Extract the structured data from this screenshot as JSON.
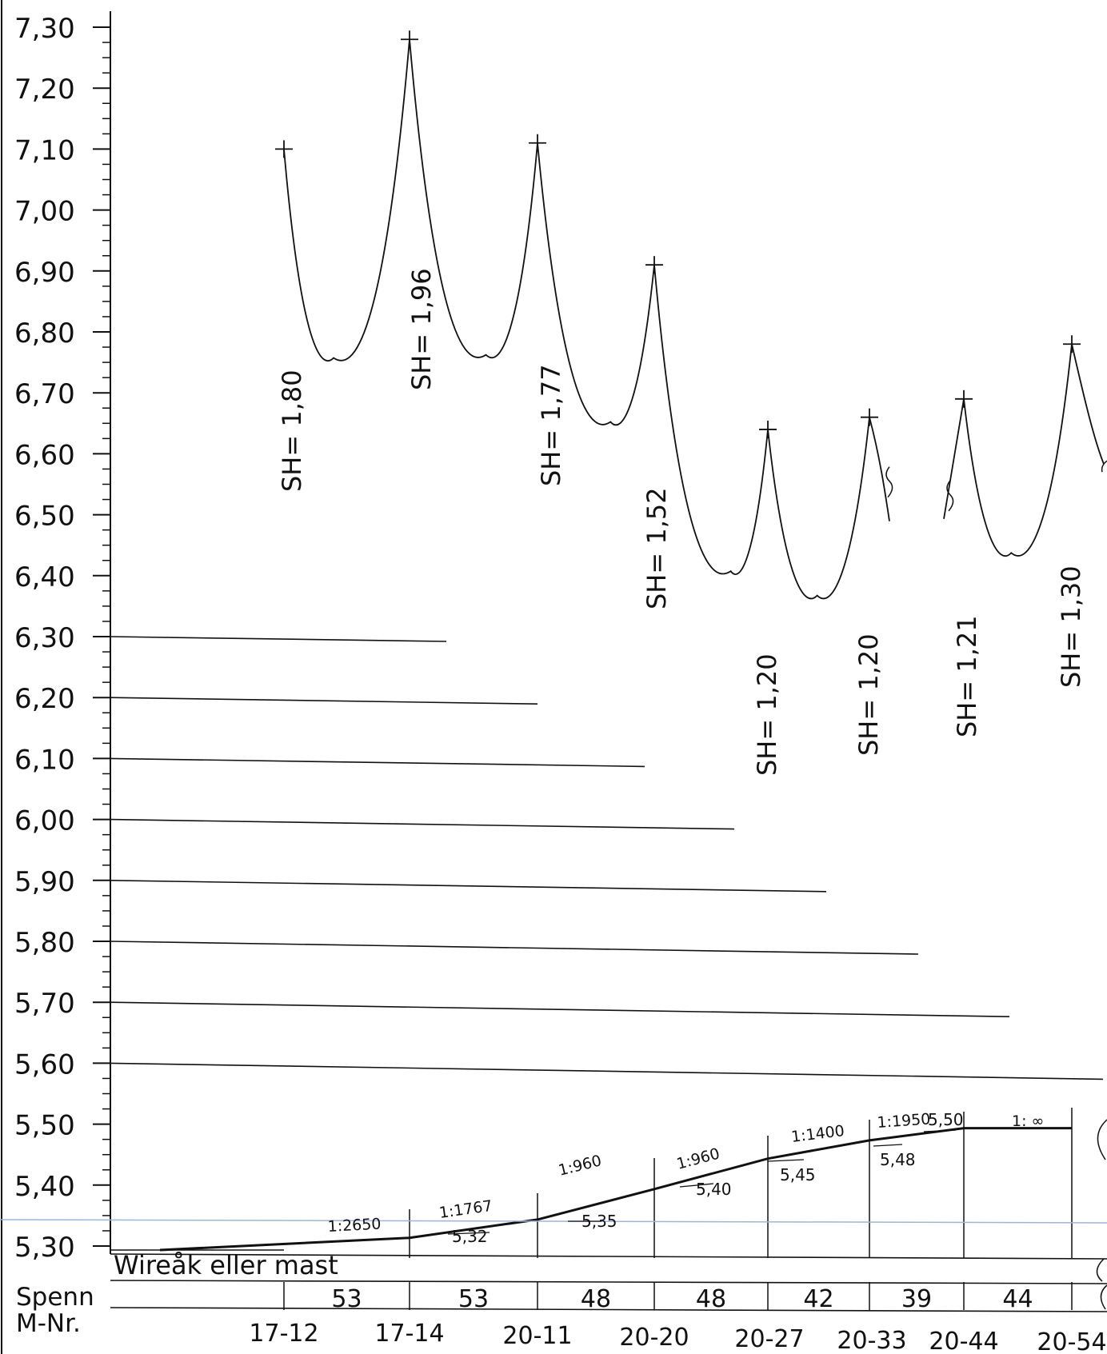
{
  "y_axis": {
    "ticks": [
      "7,30",
      "7,20",
      "7,10",
      "7,00",
      "6,90",
      "6,80",
      "6,70",
      "6,60",
      "6,50",
      "6,40",
      "6,30",
      "6,20",
      "6,10",
      "6,00",
      "5,90",
      "5,80",
      "5,70",
      "5,60",
      "5,50",
      "5,40",
      "5,30"
    ]
  },
  "sag_labels": [
    "SH=  1,80",
    "SH=  1,96",
    "SH=  1,77",
    "SH=  1,52",
    "SH=  1,20",
    "SH=  1,20",
    "SH=  1,21",
    "SH=  1,30"
  ],
  "gradient_labels": [
    "1:2650",
    "1:1767",
    "1:960",
    "1:960",
    "1:1400",
    "1:1950",
    "1: ∞"
  ],
  "elevation_labels": [
    "5,32",
    "5,35",
    "5,40",
    "5,45",
    "5,48",
    "5,50"
  ],
  "table": {
    "row1_label": "Wireåk eller mast",
    "row2_label": "Spenn",
    "row3_label": "M-Nr.",
    "spans": [
      "53",
      "53",
      "48",
      "48",
      "42",
      "39",
      "44"
    ],
    "mast_numbers": [
      "17-12",
      "17-14",
      "20-11",
      "20-20",
      "20-27",
      "20-33",
      "20-44",
      "20-54"
    ]
  },
  "chart_data": {
    "type": "line",
    "ylim": [
      5.3,
      7.3
    ],
    "series": [
      {
        "values": [
          {
            "x": 0,
            "y": 5.3
          },
          {
            "x": 53,
            "y": 5.32
          },
          {
            "x": 106,
            "y": 5.35
          },
          {
            "x": 154,
            "y": 5.4
          },
          {
            "x": 202,
            "y": 5.45
          },
          {
            "x": 244,
            "y": 5.48
          },
          {
            "x": 283,
            "y": 5.5
          },
          {
            "x": 327,
            "y": 5.5
          }
        ]
      },
      {
        "values": [
          {
            "x": 0,
            "y": 7.1
          },
          {
            "x": 53,
            "y": 7.28
          },
          {
            "x": 106,
            "y": 7.11
          },
          {
            "x": 154,
            "y": 6.91
          },
          {
            "x": 202,
            "y": 6.64
          },
          {
            "x": 244,
            "y": 6.66
          },
          {
            "x": 283,
            "y": 6.69
          },
          {
            "x": 327,
            "y": 6.78
          }
        ]
      }
    ],
    "sag": [
      1.8,
      1.96,
      1.77,
      1.52,
      1.2,
      1.2,
      1.21,
      1.3
    ]
  }
}
